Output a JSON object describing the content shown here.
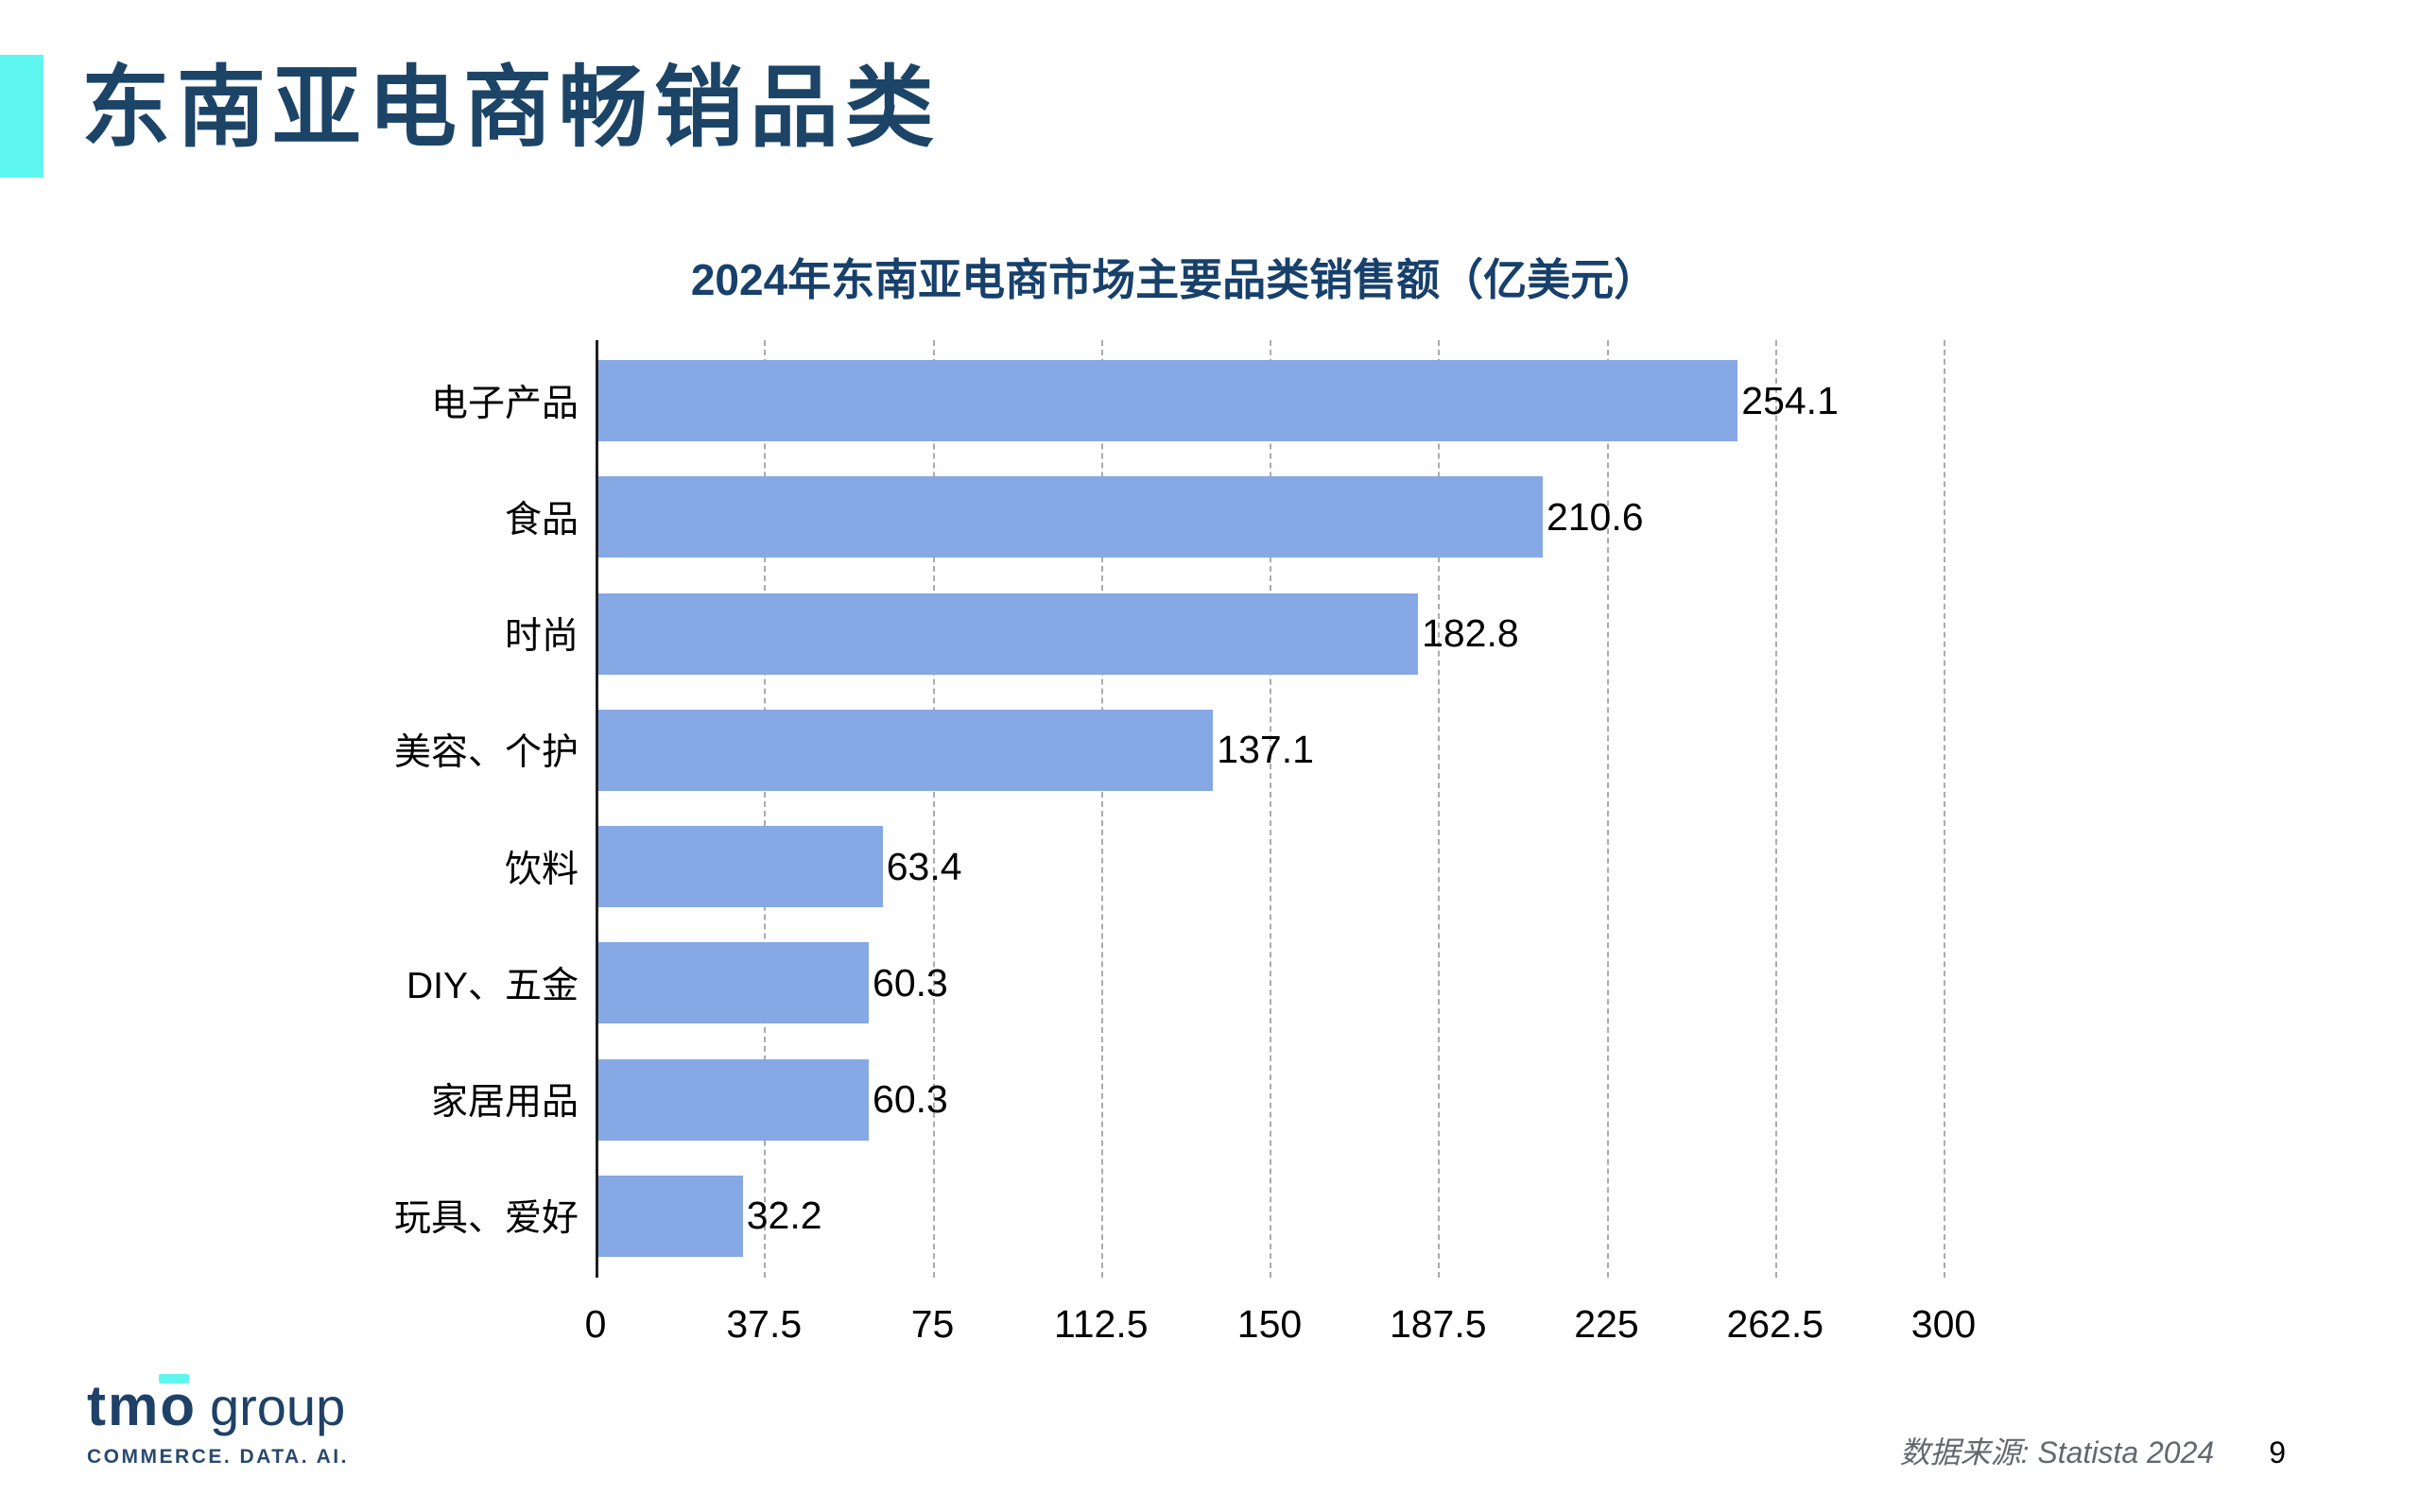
{
  "slide": {
    "title": "东南亚电商畅销品类",
    "source_note": "数据来源: Statista 2024",
    "page_number": "9"
  },
  "logo": {
    "brand": "tmo",
    "suffix": "group",
    "tagline": "COMMERCE. DATA. AI."
  },
  "colors": {
    "accent_cyan": "#5EF7F0",
    "title_navy": "#1C4467",
    "chart_title_navy": "#17406B",
    "bar_blue": "#86A8E4",
    "gridline_gray": "#ababab",
    "source_gray": "#63686F"
  },
  "chart_data": {
    "type": "bar",
    "orientation": "horizontal",
    "title": "2024年东南亚电商市场主要品类销售额（亿美元）",
    "categories": [
      "电子产品",
      "食品",
      "时尚",
      "美容、个护",
      "饮料",
      "DIY、五金",
      "家居用品",
      "玩具、爱好"
    ],
    "values": [
      254.1,
      210.6,
      182.8,
      137.1,
      63.4,
      60.3,
      60.3,
      32.2
    ],
    "value_labels": [
      "254.1",
      "210.6",
      "182.8",
      "137.1",
      "63.4",
      "60.3",
      "60.3",
      "32.2"
    ],
    "xlabel": "",
    "ylabel": "",
    "xlim": [
      0,
      300
    ],
    "xticks": [
      "0",
      "37.5",
      "75",
      "112.5",
      "150",
      "187.5",
      "225",
      "262.5",
      "300"
    ],
    "grid": "vertical-dashed",
    "legend": "none"
  }
}
